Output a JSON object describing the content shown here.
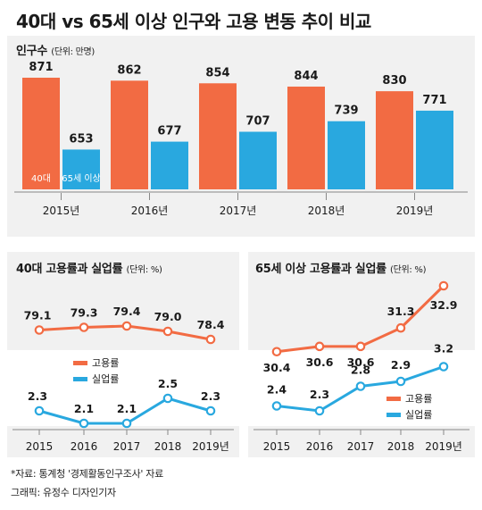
{
  "title": "40대 vs 65세 이상 인구와 고용 변동 추이 비교",
  "colors": {
    "orange": "#f26b43",
    "blue": "#29a8df",
    "panel_bg": "#f1f1f1"
  },
  "chart_data": [
    {
      "type": "bar",
      "title": "인구수",
      "unit": "(단위: 만명)",
      "categories": [
        "2015년",
        "2016년",
        "2017년",
        "2018년",
        "2019년"
      ],
      "series": [
        {
          "name": "40대",
          "values": [
            871,
            862,
            854,
            844,
            830
          ]
        },
        {
          "name": "65세 이상",
          "values": [
            653,
            677,
            707,
            739,
            771
          ]
        }
      ]
    },
    {
      "type": "line",
      "title": "40대 고용률과 실업률",
      "unit": "(단위: %)",
      "categories": [
        "2015",
        "2016",
        "2017",
        "2018",
        "2019년"
      ],
      "series": [
        {
          "name": "고용률",
          "values": [
            79.1,
            79.3,
            79.4,
            79.0,
            78.4
          ]
        },
        {
          "name": "실업률",
          "values": [
            2.3,
            2.1,
            2.1,
            2.5,
            2.3
          ]
        }
      ]
    },
    {
      "type": "line",
      "title": "65세 이상 고용률과 실업률",
      "unit": "(단위: %)",
      "categories": [
        "2015",
        "2016",
        "2017",
        "2018",
        "2019년"
      ],
      "series": [
        {
          "name": "고용률",
          "values": [
            30.4,
            30.6,
            30.6,
            31.3,
            32.9
          ]
        },
        {
          "name": "실업률",
          "values": [
            2.4,
            2.3,
            2.8,
            2.9,
            3.2
          ]
        }
      ]
    }
  ],
  "footer": {
    "source": "*자료: 통계청 '경제활동인구조사' 자료",
    "credit": "그래픽: 유정수 디자인기자"
  }
}
